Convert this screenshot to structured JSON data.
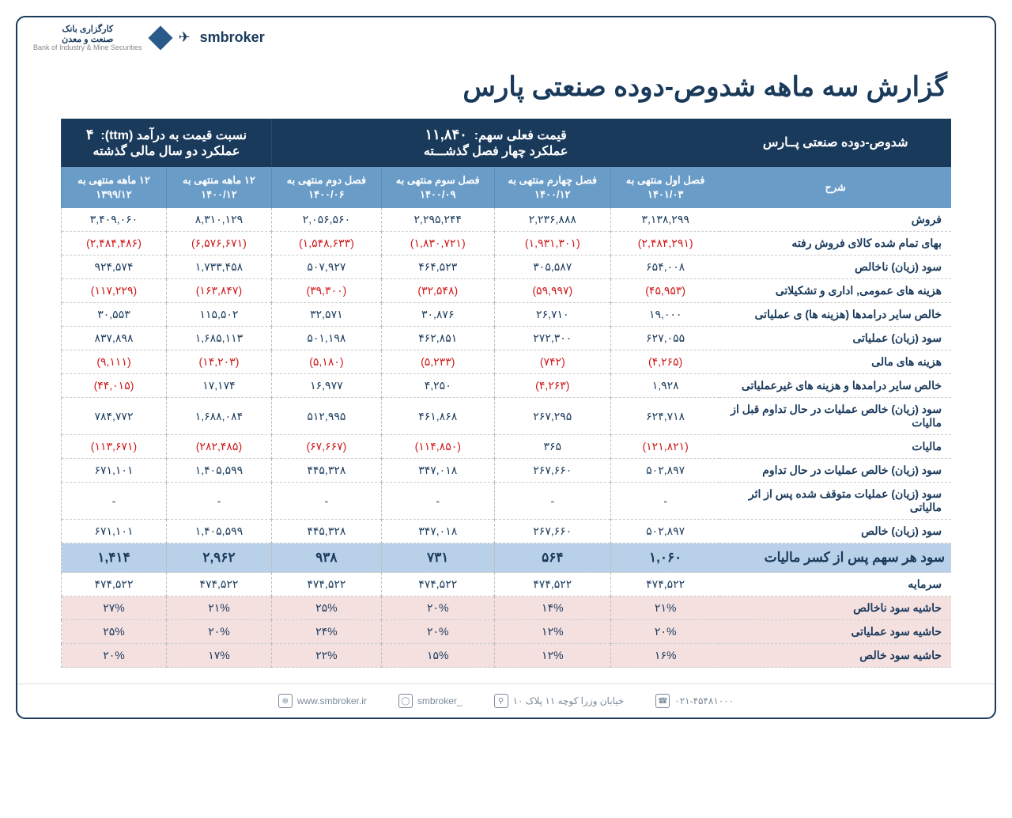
{
  "brand": {
    "name": "smbroker",
    "fa_line1": "کارگزاری بانک",
    "fa_line2": "صنعت و معدن",
    "fa_sub": "Bank of Industry & Mine Securities"
  },
  "title": "گزارش سه ماهه شدوص-دوده صنعتی پارس",
  "header": {
    "company": "شدوص-دوده صنعتی پــارس",
    "price_label": "قیمت فعلی سهم:",
    "price_value": "۱۱,۸۴۰",
    "q_section": "عملکرد چهار فصل گذشـــته",
    "ttm_label": "نسبت  قیمت به درآمد (ttm):",
    "ttm_value": "۴",
    "y_section": "عملکرد دو سال مالی گذشته"
  },
  "cols": {
    "desc": "شرح",
    "q1": "فصل اول منتهی به ۱۴۰۱/۰۳",
    "q4": "فصل چهارم منتهی به ۱۴۰۰/۱۲",
    "q3": "فصل سوم منتهی به ۱۴۰۰/۰۹",
    "q2": "فصل دوم منتهی به ۱۴۰۰/۰۶",
    "y1": "۱۲ ماهه منتهی به ۱۴۰۰/۱۲",
    "y2": "۱۲ ماهه منتهی به ۱۳۹۹/۱۲"
  },
  "rows": [
    {
      "label": "فروش",
      "q1": "۳,۱۳۸,۲۹۹",
      "q4": "۲,۲۳۶,۸۸۸",
      "q3": "۲,۲۹۵,۲۴۴",
      "q2": "۲,۰۵۶,۵۶۰",
      "y1": "۸,۳۱۰,۱۲۹",
      "y2": "۳,۴۰۹,۰۶۰"
    },
    {
      "label": "بهای تمام شده کالای فروش رفته",
      "q1": "(۲,۴۸۴,۲۹۱)",
      "q4": "(۱,۹۳۱,۳۰۱)",
      "q3": "(۱,۸۳۰,۷۲۱)",
      "q2": "(۱,۵۴۸,۶۳۳)",
      "y1": "(۶,۵۷۶,۶۷۱)",
      "y2": "(۲,۴۸۴,۴۸۶)",
      "neg": true
    },
    {
      "label": "سود (زیان) ناخالص",
      "q1": "۶۵۴,۰۰۸",
      "q4": "۳۰۵,۵۸۷",
      "q3": "۴۶۴,۵۲۳",
      "q2": "۵۰۷,۹۲۷",
      "y1": "۱,۷۳۳,۴۵۸",
      "y2": "۹۲۴,۵۷۴"
    },
    {
      "label": "هزینه های عمومی, اداری و تشکیلاتی",
      "q1": "(۴۵,۹۵۳)",
      "q4": "(۵۹,۹۹۷)",
      "q3": "(۳۲,۵۴۸)",
      "q2": "(۳۹,۳۰۰)",
      "y1": "(۱۶۳,۸۴۷)",
      "y2": "(۱۱۷,۲۲۹)",
      "neg": true
    },
    {
      "label": "خالص سایر درامدها (هزینه ها) ی عملیاتی",
      "q1": "۱۹,۰۰۰",
      "q4": "۲۶,۷۱۰",
      "q3": "۳۰,۸۷۶",
      "q2": "۳۲,۵۷۱",
      "y1": "۱۱۵,۵۰۲",
      "y2": "۳۰,۵۵۳"
    },
    {
      "label": "سود (زیان) عملیاتی",
      "q1": "۶۲۷,۰۵۵",
      "q4": "۲۷۲,۳۰۰",
      "q3": "۴۶۲,۸۵۱",
      "q2": "۵۰۱,۱۹۸",
      "y1": "۱,۶۸۵,۱۱۳",
      "y2": "۸۳۷,۸۹۸"
    },
    {
      "label": "هزینه های مالی",
      "q1": "(۴,۲۶۵)",
      "q4": "(۷۴۲)",
      "q3": "(۵,۲۳۳)",
      "q2": "(۵,۱۸۰)",
      "y1": "(۱۴,۲۰۳)",
      "y2": "(۹,۱۱۱)",
      "neg": true
    },
    {
      "label": "خالص سایر درامدها و هزینه های غیرعملیاتی",
      "q1": "۱,۹۲۸",
      "q4": "(۴,۲۶۳)",
      "q3": "۴,۲۵۰",
      "q2": "۱۶,۹۷۷",
      "y1": "۱۷,۱۷۴",
      "y2": "(۴۴,۰۱۵)",
      "cellNeg": {
        "q4": true,
        "y2": true
      }
    },
    {
      "label": "سود (زیان) خالص عملیات در حال تداوم قبل از مالیات",
      "q1": "۶۲۴,۷۱۸",
      "q4": "۲۶۷,۲۹۵",
      "q3": "۴۶۱,۸۶۸",
      "q2": "۵۱۲,۹۹۵",
      "y1": "۱,۶۸۸,۰۸۴",
      "y2": "۷۸۴,۷۷۲"
    },
    {
      "label": "مالیات",
      "q1": "(۱۲۱,۸۲۱)",
      "q4": "۳۶۵",
      "q3": "(۱۱۴,۸۵۰)",
      "q2": "(۶۷,۶۶۷)",
      "y1": "(۲۸۲,۴۸۵)",
      "y2": "(۱۱۳,۶۷۱)",
      "cellNeg": {
        "q1": true,
        "q3": true,
        "q2": true,
        "y1": true,
        "y2": true
      }
    },
    {
      "label": "سود (زیان) خالص عملیات در حال تداوم",
      "q1": "۵۰۲,۸۹۷",
      "q4": "۲۶۷,۶۶۰",
      "q3": "۳۴۷,۰۱۸",
      "q2": "۴۴۵,۳۲۸",
      "y1": "۱,۴۰۵,۵۹۹",
      "y2": "۶۷۱,۱۰۱"
    },
    {
      "label": "سود (زیان) عملیات متوقف شده پس از اثر مالیاتی",
      "q1": "-",
      "q4": "-",
      "q3": "-",
      "q2": "-",
      "y1": "-",
      "y2": "-"
    },
    {
      "label": "سود (زیان) خالص",
      "q1": "۵۰۲,۸۹۷",
      "q4": "۲۶۷,۶۶۰",
      "q3": "۳۴۷,۰۱۸",
      "q2": "۴۴۵,۳۲۸",
      "y1": "۱,۴۰۵,۵۹۹",
      "y2": "۶۷۱,۱۰۱"
    },
    {
      "label": "سود هر سهم پس از کسر مالیات",
      "q1": "۱,۰۶۰",
      "q4": "۵۶۴",
      "q3": "۷۳۱",
      "q2": "۹۳۸",
      "y1": "۲,۹۶۲",
      "y2": "۱,۴۱۴",
      "eps": true
    },
    {
      "label": "سرمایه",
      "q1": "۴۷۴,۵۲۲",
      "q4": "۴۷۴,۵۲۲",
      "q3": "۴۷۴,۵۲۲",
      "q2": "۴۷۴,۵۲۲",
      "y1": "۴۷۴,۵۲۲",
      "y2": "۴۷۴,۵۲۲"
    },
    {
      "label": "حاشیه سود ناخالص",
      "q1": "۲۱%",
      "q4": "۱۴%",
      "q3": "۲۰%",
      "q2": "۲۵%",
      "y1": "۲۱%",
      "y2": "۲۷%",
      "margin": true
    },
    {
      "label": "حاشیه سود عملیاتی",
      "q1": "۲۰%",
      "q4": "۱۲%",
      "q3": "۲۰%",
      "q2": "۲۴%",
      "y1": "۲۰%",
      "y2": "۲۵%",
      "margin": true
    },
    {
      "label": "حاشیه سود خالص",
      "q1": "۱۶%",
      "q4": "۱۲%",
      "q3": "۱۵%",
      "q2": "۲۲%",
      "y1": "۱۷%",
      "y2": "۲۰%",
      "margin": true
    }
  ],
  "footer": {
    "web": "www.smbroker.ir",
    "ig": "smbroker_",
    "addr": "خیابان وزرا کوچه ۱۱ پلاک ۱۰",
    "tel": "۰۲۱-۴۵۴۸۱۰۰۰"
  },
  "colors": {
    "primary": "#1a3a5c",
    "subheader": "#6a9cc8",
    "eps_bg": "#b8d0e8",
    "margin_bg": "#f5e0e0",
    "neg": "#d01818"
  }
}
